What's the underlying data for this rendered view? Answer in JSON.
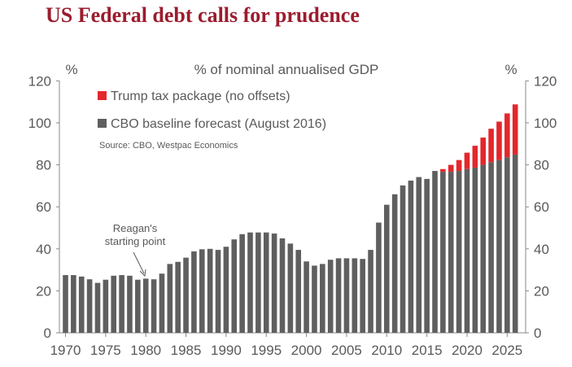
{
  "chart_data": {
    "type": "bar",
    "stacked": true,
    "title": "US Federal debt calls for prudence",
    "subtitle": "% of nominal annualised GDP",
    "ylabel_left": "%",
    "ylabel_right": "%",
    "ylim": [
      0,
      120
    ],
    "yticks": [
      0,
      20,
      40,
      60,
      80,
      100,
      120
    ],
    "xtick_labels": [
      "1970",
      "1975",
      "1980",
      "1985",
      "1990",
      "1995",
      "2000",
      "2005",
      "2010",
      "2015",
      "2020",
      "2025"
    ],
    "x": [
      1970,
      1971,
      1972,
      1973,
      1974,
      1975,
      1976,
      1977,
      1978,
      1979,
      1980,
      1981,
      1982,
      1983,
      1984,
      1985,
      1986,
      1987,
      1988,
      1989,
      1990,
      1991,
      1992,
      1993,
      1994,
      1995,
      1996,
      1997,
      1998,
      1999,
      2000,
      2001,
      2002,
      2003,
      2004,
      2005,
      2006,
      2007,
      2008,
      2009,
      2010,
      2011,
      2012,
      2013,
      2014,
      2015,
      2016,
      2017,
      2018,
      2019,
      2020,
      2021,
      2022,
      2023,
      2024,
      2025,
      2026
    ],
    "series": [
      {
        "name": "CBO baseline forecast (August 2016)",
        "color": "#5f5f5f",
        "values": [
          27.5,
          27.5,
          26.8,
          25.5,
          23.8,
          25.3,
          27.2,
          27.5,
          27.2,
          25.3,
          25.8,
          25.5,
          28.2,
          32.8,
          33.8,
          35.8,
          38.8,
          39.8,
          40,
          39.5,
          41,
          44.5,
          47,
          47.8,
          47.8,
          47.8,
          47.3,
          45,
          42.5,
          39.5,
          34,
          32,
          32.8,
          34.8,
          35.5,
          35.5,
          35.5,
          35.2,
          39.5,
          52.5,
          61,
          66,
          70.2,
          72.5,
          74.2,
          73.3,
          77.1,
          76.7,
          76.7,
          77.1,
          78,
          78.7,
          80,
          81.3,
          82.3,
          83.6,
          84.9
        ]
      },
      {
        "name": "Trump tax package (no offsets)",
        "color": "#e3272c",
        "values": [
          0,
          0,
          0,
          0,
          0,
          0,
          0,
          0,
          0,
          0,
          0,
          0,
          0,
          0,
          0,
          0,
          0,
          0,
          0,
          0,
          0,
          0,
          0,
          0,
          0,
          0,
          0,
          0,
          0,
          0,
          0,
          0,
          0,
          0,
          0,
          0,
          0,
          0,
          0,
          0,
          0,
          0,
          0,
          0,
          0,
          0,
          0,
          1.3,
          3.3,
          5.2,
          7.8,
          10.4,
          13,
          15.9,
          18.3,
          20.9,
          23.9
        ]
      }
    ],
    "legend_placement": "top-left",
    "source": "Source: CBO, Westpac Economics",
    "annotation": {
      "text_line1": "Reagan's",
      "text_line2": "starting point",
      "year": 1980
    },
    "grid": false
  }
}
